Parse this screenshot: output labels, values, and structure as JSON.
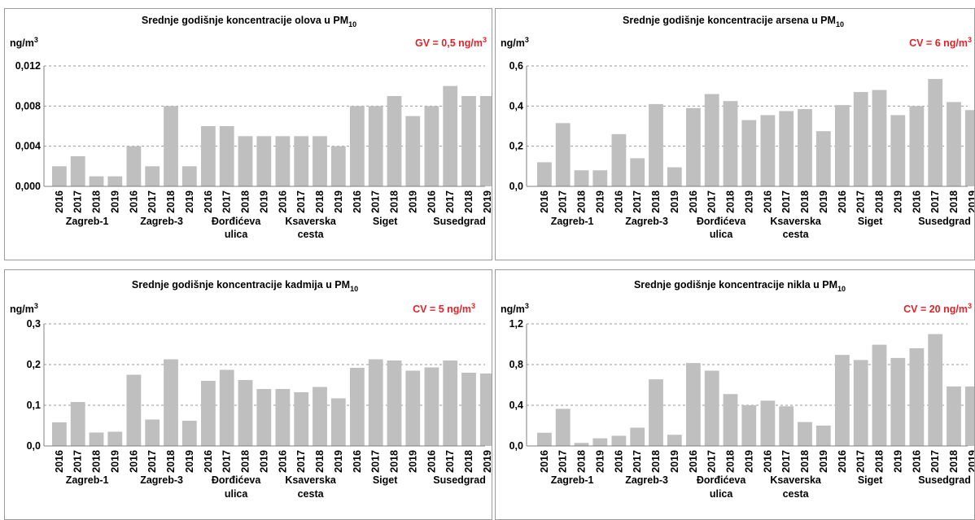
{
  "chart_data": [
    {
      "type": "bar",
      "title": "Srednje godišnje koncentracije olova u PM",
      "title_sub": "10",
      "unit": "ng/m",
      "unit_sup": "3",
      "limit_label": "GV =  0,5 ng/m",
      "limit_sup": "3",
      "ylim": [
        0,
        0.012
      ],
      "yticks": [
        "0,000",
        "0,004",
        "0,008",
        "0,012"
      ],
      "grid": true,
      "years": [
        "2016",
        "2017",
        "2018",
        "2019"
      ],
      "groups": [
        {
          "station": [
            "Zagreb-1"
          ],
          "values": [
            0.002,
            0.003,
            0.001,
            0.001
          ]
        },
        {
          "station": [
            "Zagreb-3"
          ],
          "values": [
            0.004,
            0.002,
            0.008,
            0.002
          ]
        },
        {
          "station": [
            "Đorđićeva",
            "ulica"
          ],
          "values": [
            0.006,
            0.006,
            0.005,
            0.005
          ]
        },
        {
          "station": [
            "Ksaverska",
            "cesta"
          ],
          "values": [
            0.005,
            0.005,
            0.005,
            0.004
          ]
        },
        {
          "station": [
            "Siget"
          ],
          "values": [
            0.008,
            0.008,
            0.009,
            0.007
          ]
        },
        {
          "station": [
            "Susedgrad"
          ],
          "values": [
            0.008,
            0.01,
            0.009,
            0.009
          ]
        }
      ]
    },
    {
      "type": "bar",
      "title": "Srednje godišnje koncentracije arsena u PM",
      "title_sub": "10",
      "unit": "ng/m",
      "unit_sup": "3",
      "limit_label": "CV =  6 ng/m",
      "limit_sup": "3",
      "ylim": [
        0,
        0.6
      ],
      "yticks": [
        "0,0",
        "0,2",
        "0,4",
        "0,6"
      ],
      "grid": true,
      "years": [
        "2016",
        "2017",
        "2018",
        "2019"
      ],
      "groups": [
        {
          "station": [
            "Zagreb-1"
          ],
          "values": [
            0.12,
            0.315,
            0.08,
            0.08
          ]
        },
        {
          "station": [
            "Zagreb-3"
          ],
          "values": [
            0.26,
            0.14,
            0.41,
            0.095
          ]
        },
        {
          "station": [
            "Đorđićeva",
            "ulica"
          ],
          "values": [
            0.39,
            0.46,
            0.425,
            0.33
          ]
        },
        {
          "station": [
            "Ksaverska",
            "cesta"
          ],
          "values": [
            0.355,
            0.375,
            0.385,
            0.275
          ]
        },
        {
          "station": [
            "Siget"
          ],
          "values": [
            0.405,
            0.47,
            0.48,
            0.355
          ]
        },
        {
          "station": [
            "Susedgrad"
          ],
          "values": [
            0.4,
            0.535,
            0.42,
            0.38
          ]
        }
      ]
    },
    {
      "type": "bar",
      "title": "Srednje godišnje koncentracije kadmija  u PM",
      "title_sub": "10",
      "unit": "ng/m",
      "unit_sup": "3",
      "limit_label": "CV =  5 ng/m",
      "limit_sup": "3",
      "ylim": [
        0,
        0.3
      ],
      "yticks": [
        "0,0",
        "0,1",
        "0,2",
        "0,3"
      ],
      "grid": true,
      "years": [
        "2016",
        "2017",
        "2018",
        "2019"
      ],
      "groups": [
        {
          "station": [
            "Zagreb-1"
          ],
          "values": [
            0.058,
            0.108,
            0.033,
            0.035
          ]
        },
        {
          "station": [
            "Zagreb-3"
          ],
          "values": [
            0.175,
            0.065,
            0.213,
            0.062
          ]
        },
        {
          "station": [
            "Đorđićeva",
            "ulica"
          ],
          "values": [
            0.16,
            0.187,
            0.162,
            0.14
          ]
        },
        {
          "station": [
            "Ksaverska",
            "cesta"
          ],
          "values": [
            0.14,
            0.132,
            0.145,
            0.117
          ]
        },
        {
          "station": [
            "Siget"
          ],
          "values": [
            0.192,
            0.213,
            0.21,
            0.185
          ]
        },
        {
          "station": [
            "Susedgrad"
          ],
          "values": [
            0.193,
            0.21,
            0.18,
            0.178
          ]
        }
      ]
    },
    {
      "type": "bar",
      "title": "Srednje godišnje koncentracije nikla u PM",
      "title_sub": "10",
      "unit": "ng/m",
      "unit_sup": "3",
      "limit_label": "CV =  20 ng/m",
      "limit_sup": "3",
      "ylim": [
        0,
        1.2
      ],
      "yticks": [
        "0,0",
        "0,4",
        "0,8",
        "1,2"
      ],
      "grid": true,
      "years": [
        "2016",
        "2017",
        "2018",
        "2019"
      ],
      "groups": [
        {
          "station": [
            "Zagreb-1"
          ],
          "values": [
            0.13,
            0.365,
            0.03,
            0.075
          ]
        },
        {
          "station": [
            "Zagreb-3"
          ],
          "values": [
            0.1,
            0.18,
            0.655,
            0.11
          ]
        },
        {
          "station": [
            "Đorđićeva",
            "ulica"
          ],
          "values": [
            0.815,
            0.74,
            0.51,
            0.4
          ]
        },
        {
          "station": [
            "Ksaverska",
            "cesta"
          ],
          "values": [
            0.445,
            0.39,
            0.235,
            0.2
          ]
        },
        {
          "station": [
            "Siget"
          ],
          "values": [
            0.895,
            0.845,
            0.995,
            0.865
          ]
        },
        {
          "station": [
            "Susedgrad"
          ],
          "values": [
            0.96,
            1.1,
            0.585,
            0.585
          ]
        }
      ]
    }
  ]
}
